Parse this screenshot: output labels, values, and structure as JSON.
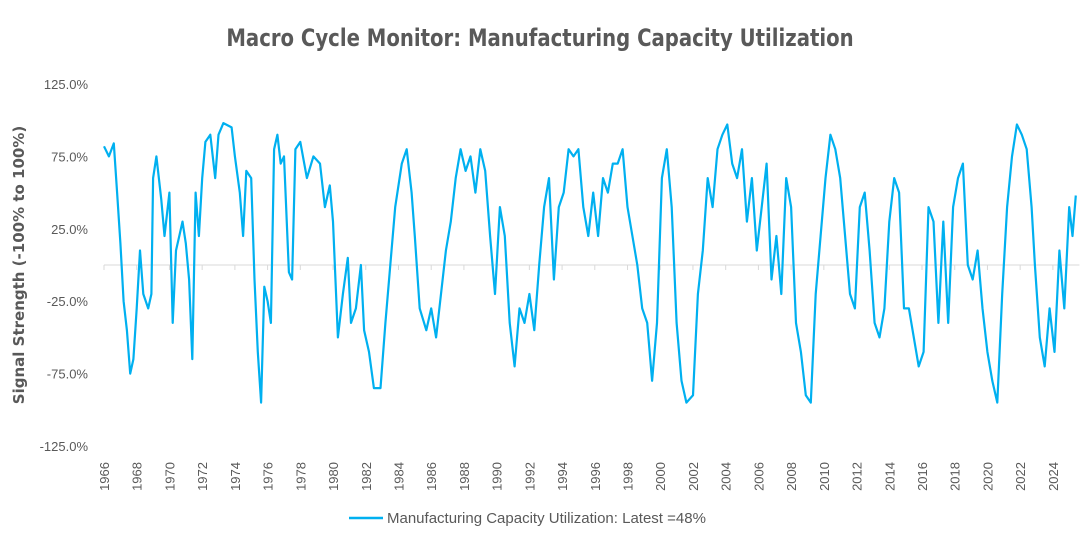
{
  "chart_data": {
    "type": "line",
    "title": "Macro Cycle Monitor: Manufacturing Capacity Utilization",
    "xlabel": "",
    "ylabel": "Signal Strength (-100% to 100%)",
    "ylim": [
      -125,
      125
    ],
    "xlim": [
      1966,
      2025.5
    ],
    "y_ticks": [
      "125.0%",
      "75.0%",
      "25.0%",
      "-25.0%",
      "-75.0%",
      "-125.0%"
    ],
    "y_tick_values": [
      125,
      75,
      25,
      -25,
      -75,
      -125
    ],
    "x_ticks": [
      "1966",
      "1968",
      "1970",
      "1972",
      "1974",
      "1976",
      "1978",
      "1980",
      "1982",
      "1984",
      "1986",
      "1988",
      "1990",
      "1992",
      "1994",
      "1996",
      "1998",
      "2000",
      "2002",
      "2004",
      "2006",
      "2008",
      "2010",
      "2012",
      "2014",
      "2016",
      "2018",
      "2020",
      "2022",
      "2024"
    ],
    "grid": false,
    "legend_position": "bottom",
    "series": [
      {
        "name": "Manufacturing Capacity Utilization: Latest =48%",
        "color": "#00B0F0",
        "x": [
          1966.0,
          1966.3,
          1966.6,
          1966.8,
          1967.0,
          1967.2,
          1967.4,
          1967.6,
          1967.8,
          1968.0,
          1968.2,
          1968.4,
          1968.7,
          1968.9,
          1969.0,
          1969.2,
          1969.5,
          1969.7,
          1970.0,
          1970.2,
          1970.4,
          1970.6,
          1970.8,
          1971.0,
          1971.2,
          1971.4,
          1971.6,
          1971.8,
          1972.0,
          1972.2,
          1972.5,
          1972.8,
          1973.0,
          1973.3,
          1973.8,
          1974.0,
          1974.3,
          1974.5,
          1974.7,
          1975.0,
          1975.2,
          1975.4,
          1975.6,
          1975.8,
          1976.0,
          1976.2,
          1976.4,
          1976.6,
          1976.8,
          1977.0,
          1977.3,
          1977.5,
          1977.7,
          1978.0,
          1978.4,
          1978.8,
          1979.2,
          1979.5,
          1979.8,
          1980.0,
          1980.3,
          1980.6,
          1980.9,
          1981.1,
          1981.4,
          1981.7,
          1981.9,
          1982.2,
          1982.5,
          1982.9,
          1983.2,
          1983.5,
          1983.8,
          1984.2,
          1984.5,
          1984.8,
          1985.0,
          1985.3,
          1985.7,
          1986.0,
          1986.3,
          1986.6,
          1986.9,
          1987.2,
          1987.5,
          1987.8,
          1988.1,
          1988.4,
          1988.7,
          1989.0,
          1989.3,
          1989.6,
          1989.9,
          1990.2,
          1990.5,
          1990.8,
          1991.1,
          1991.4,
          1991.7,
          1992.0,
          1992.3,
          1992.6,
          1992.9,
          1993.2,
          1993.5,
          1993.8,
          1994.1,
          1994.4,
          1994.7,
          1995.0,
          1995.3,
          1995.6,
          1995.9,
          1996.2,
          1996.5,
          1996.8,
          1997.1,
          1997.4,
          1997.7,
          1998.0,
          1998.3,
          1998.6,
          1998.9,
          1999.2,
          1999.5,
          1999.8,
          2000.1,
          2000.4,
          2000.7,
          2001.0,
          2001.3,
          2001.6,
          2002.0,
          2002.3,
          2002.6,
          2002.9,
          2003.2,
          2003.5,
          2003.8,
          2004.1,
          2004.4,
          2004.7,
          2005.0,
          2005.3,
          2005.6,
          2005.9,
          2006.2,
          2006.5,
          2006.8,
          2007.1,
          2007.4,
          2007.7,
          2008.0,
          2008.3,
          2008.6,
          2008.9,
          2009.2,
          2009.5,
          2009.8,
          2010.1,
          2010.4,
          2010.7,
          2011.0,
          2011.3,
          2011.6,
          2011.9,
          2012.2,
          2012.5,
          2012.8,
          2013.1,
          2013.4,
          2013.7,
          2014.0,
          2014.3,
          2014.6,
          2014.9,
          2015.2,
          2015.5,
          2015.8,
          2016.1,
          2016.4,
          2016.7,
          2017.0,
          2017.3,
          2017.6,
          2017.9,
          2018.2,
          2018.5,
          2018.8,
          2019.1,
          2019.4,
          2019.7,
          2020.0,
          2020.3,
          2020.6,
          2020.9,
          2021.2,
          2021.5,
          2021.8,
          2022.1,
          2022.4,
          2022.7,
          2022.9,
          2023.2,
          2023.5,
          2023.8,
          2024.1,
          2024.4,
          2024.7,
          2025.0,
          2025.2,
          2025.4
        ],
        "y": [
          82,
          75,
          84,
          50,
          15,
          -25,
          -45,
          -75,
          -65,
          -30,
          10,
          -20,
          -30,
          -20,
          60,
          75,
          45,
          20,
          50,
          -40,
          10,
          20,
          30,
          15,
          -10,
          -65,
          50,
          20,
          60,
          85,
          90,
          60,
          90,
          98,
          95,
          75,
          50,
          20,
          65,
          60,
          -10,
          -60,
          -95,
          -15,
          -25,
          -40,
          80,
          90,
          70,
          75,
          -5,
          -10,
          80,
          85,
          60,
          75,
          70,
          40,
          55,
          30,
          -50,
          -20,
          5,
          -40,
          -30,
          0,
          -45,
          -60,
          -85,
          -85,
          -40,
          0,
          40,
          70,
          80,
          50,
          20,
          -30,
          -45,
          -30,
          -50,
          -20,
          10,
          30,
          60,
          80,
          65,
          75,
          50,
          80,
          65,
          20,
          -20,
          40,
          20,
          -40,
          -70,
          -30,
          -40,
          -20,
          -45,
          0,
          40,
          60,
          -10,
          40,
          50,
          80,
          75,
          80,
          40,
          20,
          50,
          20,
          60,
          50,
          70,
          70,
          80,
          40,
          20,
          0,
          -30,
          -40,
          -80,
          -40,
          60,
          80,
          40,
          -40,
          -80,
          -95,
          -90,
          -20,
          10,
          60,
          40,
          80,
          90,
          97,
          70,
          60,
          80,
          30,
          60,
          10,
          40,
          70,
          -10,
          20,
          -20,
          60,
          40,
          -40,
          -60,
          -90,
          -95,
          -20,
          20,
          60,
          90,
          80,
          60,
          20,
          -20,
          -30,
          40,
          50,
          10,
          -40,
          -50,
          -30,
          30,
          60,
          50,
          -30,
          -30,
          -50,
          -70,
          -60,
          40,
          30,
          -40,
          30,
          -40,
          40,
          60,
          70,
          0,
          -10,
          10,
          -30,
          -60,
          -80,
          -95,
          -20,
          40,
          75,
          97,
          90,
          80,
          40,
          0,
          -50,
          -70,
          -30,
          -60,
          10,
          -30,
          40,
          20,
          48
        ]
      }
    ]
  }
}
